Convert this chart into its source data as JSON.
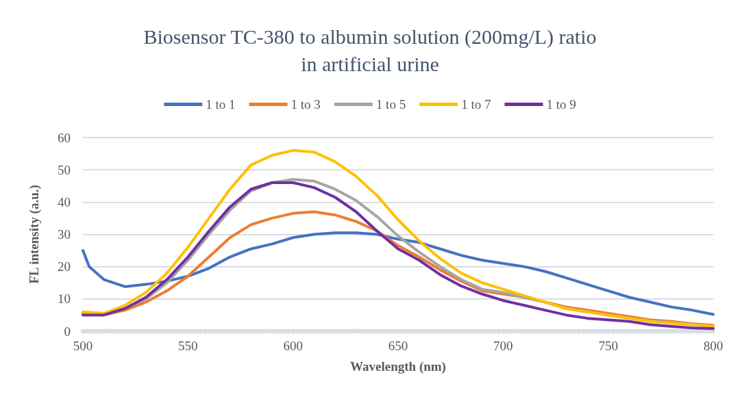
{
  "chart_data": {
    "type": "line",
    "title": "Biosensor TC-380 to albumin solution (200mg/L) ratio\nin artificial urine",
    "xlabel": "Wavelength (nm)",
    "ylabel": "FL intensity (a.u.)",
    "x": [
      500,
      510,
      520,
      530,
      540,
      550,
      560,
      570,
      580,
      590,
      600,
      610,
      620,
      630,
      640,
      650,
      660,
      670,
      680,
      690,
      700,
      710,
      720,
      730,
      740,
      750,
      760,
      770,
      780,
      790,
      800
    ],
    "series": [
      {
        "name": "1 to 1",
        "color": "#4472c4",
        "x": [
          500,
          503,
          510,
          520,
          530,
          540,
          550,
          560,
          570,
          580,
          590,
          600,
          610,
          620,
          630,
          640,
          650,
          660,
          670,
          680,
          690,
          700,
          710,
          720,
          730,
          740,
          750,
          760,
          770,
          780,
          790,
          800
        ],
        "values": [
          25,
          20,
          16,
          13.8,
          14.5,
          15.5,
          17,
          19.5,
          23,
          25.5,
          27,
          29,
          30,
          30.5,
          30.5,
          30,
          28.5,
          27.5,
          25.5,
          23.5,
          22,
          21,
          20,
          18.5,
          16.5,
          14.5,
          12.5,
          10.5,
          9,
          7.5,
          6.5,
          5.2
        ]
      },
      {
        "name": "1 to 3",
        "color": "#ed7d31",
        "values": [
          5.5,
          5,
          6.5,
          9,
          12.5,
          17,
          23,
          29,
          33,
          35,
          36.5,
          37,
          36,
          34,
          31,
          26.5,
          23,
          19,
          15.5,
          12.5,
          11.5,
          10.5,
          9,
          7.5,
          6.5,
          5.5,
          4.5,
          3.5,
          3,
          2.3,
          1.8
        ]
      },
      {
        "name": "1 to 5",
        "color": "#a5a5a5",
        "values": [
          5.5,
          5.2,
          7,
          10,
          15,
          22,
          30,
          37.5,
          43.5,
          46,
          47,
          46.5,
          44,
          40.5,
          35.5,
          29.5,
          24.5,
          20,
          16,
          13,
          12,
          10.5,
          9,
          7,
          6,
          5,
          4,
          3.2,
          2.7,
          2,
          1.5
        ]
      },
      {
        "name": "1 to 7",
        "color": "#ffc000",
        "values": [
          6,
          5.5,
          8,
          12,
          18,
          26,
          35,
          44,
          51.5,
          54.5,
          56,
          55.5,
          52.5,
          48,
          42,
          34.5,
          28,
          22.5,
          18,
          15,
          13,
          11,
          9,
          7,
          6,
          5,
          4,
          3,
          2.5,
          2,
          1.5
        ]
      },
      {
        "name": "1 to 9",
        "color": "#7030a0",
        "values": [
          5,
          5,
          7,
          10.5,
          16,
          23,
          31,
          38.5,
          44,
          46,
          46,
          44.5,
          41.5,
          37,
          31,
          25.5,
          22,
          17.5,
          14,
          11.5,
          9.5,
          8,
          6.5,
          5,
          4,
          3.5,
          3,
          2,
          1.5,
          1,
          0.8
        ]
      }
    ],
    "xlim": [
      500,
      800
    ],
    "xticks": [
      500,
      550,
      600,
      650,
      700,
      750,
      800
    ],
    "ylim": [
      0,
      60
    ],
    "yticks": [
      0,
      10,
      20,
      30,
      40,
      50,
      60
    ],
    "grid": "y",
    "legend": "top",
    "marker": "none",
    "line_style": "solid"
  }
}
